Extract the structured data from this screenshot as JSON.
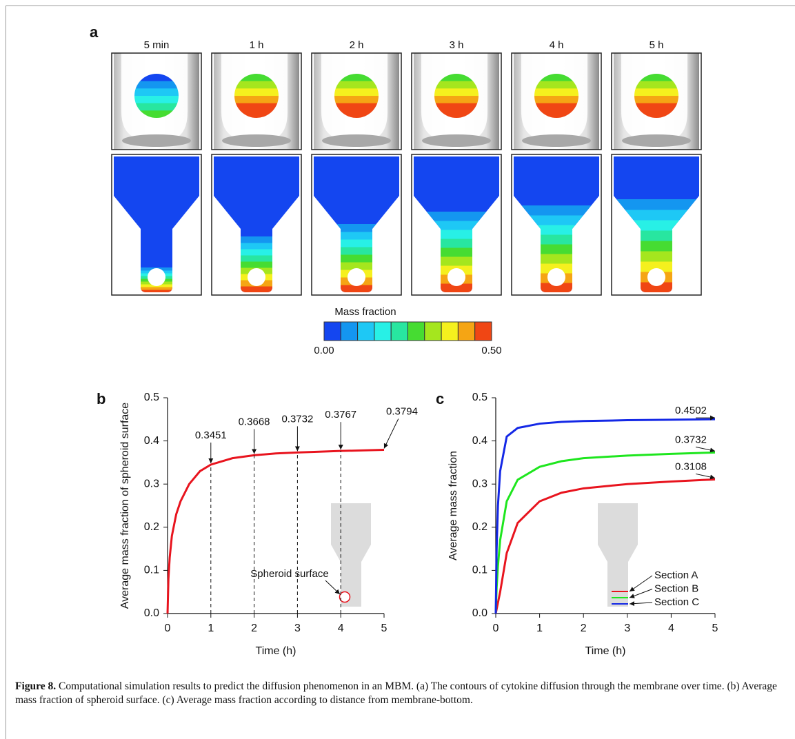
{
  "figure_a": {
    "panel_label": "a",
    "times": [
      "5 min",
      "1 h",
      "2 h",
      "3 h",
      "4 h",
      "5 h"
    ],
    "colorbar": {
      "title": "Mass fraction",
      "min_label": "0.00",
      "max_label": "0.50",
      "colors": [
        "#1446f0",
        "#1496f0",
        "#1ec8f5",
        "#28f0e6",
        "#28e6a0",
        "#46dc32",
        "#a5e61e",
        "#f5f01e",
        "#f5a514",
        "#f04614"
      ]
    }
  },
  "chart_data": [
    {
      "type": "line",
      "panel_label": "b",
      "xlabel": "Time (h)",
      "ylabel": "Average mass fraction of spheroid surface",
      "x": [
        0,
        0.02,
        0.05,
        0.1,
        0.2,
        0.3,
        0.5,
        0.75,
        1,
        1.5,
        2,
        2.5,
        3,
        3.5,
        4,
        4.5,
        5
      ],
      "values": [
        0,
        0.08,
        0.13,
        0.18,
        0.23,
        0.26,
        0.3,
        0.33,
        0.3451,
        0.36,
        0.3668,
        0.371,
        0.3732,
        0.375,
        0.3767,
        0.378,
        0.3794
      ],
      "color": "#e8141e",
      "xlim": [
        0,
        5
      ],
      "xticks": [
        0,
        1,
        2,
        3,
        4,
        5
      ],
      "ylim": [
        0,
        0.5
      ],
      "yticks": [
        {
          "value": 0,
          "label": "0.0"
        },
        {
          "value": 0.1,
          "label": "0.1"
        },
        {
          "value": 0.2,
          "label": "0.2"
        },
        {
          "value": 0.3,
          "label": "0.3"
        },
        {
          "value": 0.4,
          "label": "0.4"
        },
        {
          "value": 0.5,
          "label": "0.5"
        }
      ],
      "annotations": [
        {
          "label": "0.3451",
          "x": 1,
          "y": 0.3451,
          "guide": true
        },
        {
          "label": "0.3668",
          "x": 2,
          "y": 0.3668,
          "guide": true
        },
        {
          "label": "0.3732",
          "x": 3,
          "y": 0.3732,
          "guide": true
        },
        {
          "label": "0.3767",
          "x": 4,
          "y": 0.3767,
          "guide": true
        },
        {
          "label": "0.3794",
          "x": 5,
          "y": 0.3794,
          "guide": false
        }
      ],
      "inset_label": "Spheroid surface"
    },
    {
      "type": "line",
      "panel_label": "c",
      "xlabel": "Time (h)",
      "ylabel": "Average mass fraction",
      "x": [
        0,
        0.02,
        0.05,
        0.1,
        0.25,
        0.5,
        1,
        1.5,
        2,
        3,
        4,
        5
      ],
      "series": [
        {
          "name": "Section A",
          "color": "#e8141e",
          "values": [
            0,
            0.01,
            0.025,
            0.05,
            0.14,
            0.21,
            0.26,
            0.28,
            0.29,
            0.3,
            0.306,
            0.3108
          ]
        },
        {
          "name": "Section B",
          "color": "#1ee61e",
          "values": [
            0,
            0.06,
            0.11,
            0.17,
            0.26,
            0.31,
            0.34,
            0.353,
            0.36,
            0.366,
            0.37,
            0.3732
          ]
        },
        {
          "name": "Section C",
          "color": "#1428e6",
          "values": [
            0,
            0.15,
            0.25,
            0.33,
            0.41,
            0.43,
            0.44,
            0.444,
            0.446,
            0.448,
            0.449,
            0.4502
          ]
        }
      ],
      "xlim": [
        0,
        5
      ],
      "xticks": [
        0,
        1,
        2,
        3,
        4,
        5
      ],
      "ylim": [
        0,
        0.5
      ],
      "yticks": [
        {
          "value": 0,
          "label": "0.0"
        },
        {
          "value": 0.1,
          "label": "0.1"
        },
        {
          "value": 0.2,
          "label": "0.2"
        },
        {
          "value": 0.3,
          "label": "0.3"
        },
        {
          "value": 0.4,
          "label": "0.4"
        },
        {
          "value": 0.5,
          "label": "0.5"
        }
      ],
      "annotations": [
        {
          "label": "0.4502",
          "x": 5,
          "y": 0.4502,
          "guide": false
        },
        {
          "label": "0.3732",
          "x": 5,
          "y": 0.3732,
          "guide": false
        },
        {
          "label": "0.3108",
          "x": 5,
          "y": 0.3108,
          "guide": false
        }
      ]
    }
  ],
  "caption": {
    "label": "Figure 8.",
    "text": " Computational simulation results to predict the diffusion phenomenon in an MBM. (a) The contours of cytokine diffusion through the membrane over time. (b) Average mass fraction of spheroid surface. (c) Average mass fraction according to distance from membrane-bottom."
  }
}
